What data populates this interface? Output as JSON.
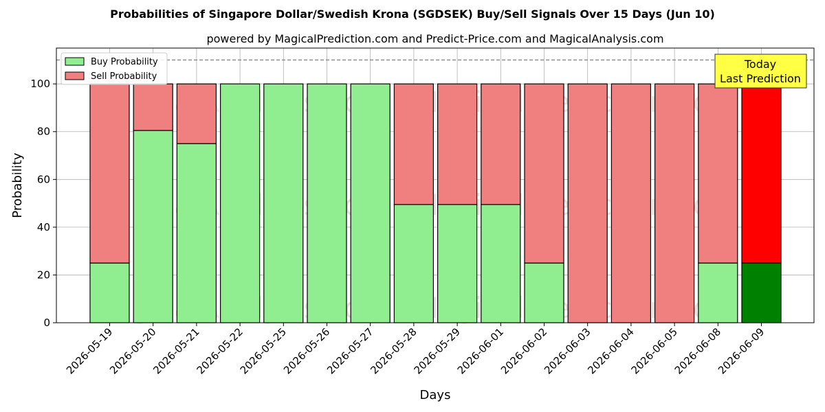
{
  "chart_data": {
    "type": "bar",
    "title": "Probabilities of Singapore Dollar/Swedish Krona (SGDSEK) Buy/Sell Signals Over 15 Days (Jun 10)",
    "subtitle": "powered by MagicalPrediction.com and Predict-Price.com and MagicalAnalysis.com",
    "xlabel": "Days",
    "ylabel": "Probability",
    "ylim": [
      0,
      115
    ],
    "yticks": [
      0,
      20,
      40,
      60,
      80,
      100
    ],
    "reference_line": 110,
    "grid": true,
    "stacked": true,
    "legend_position": "top-left",
    "categories": [
      "2026-05-19",
      "2026-05-20",
      "2026-05-21",
      "2026-05-22",
      "2026-05-25",
      "2026-05-26",
      "2026-05-27",
      "2026-05-28",
      "2026-05-29",
      "2026-06-01",
      "2026-06-02",
      "2026-06-03",
      "2026-06-04",
      "2026-06-05",
      "2026-06-08",
      "2026-06-09"
    ],
    "series": [
      {
        "name": "Buy Probability",
        "color": "#90ee90",
        "values": [
          25,
          80.5,
          75,
          100,
          100,
          100,
          100,
          49.5,
          49.5,
          49.5,
          25,
          0,
          0,
          0,
          25,
          25
        ]
      },
      {
        "name": "Sell Probability",
        "color": "#f08080",
        "values": [
          75,
          19.5,
          25,
          0,
          0,
          0,
          0,
          50.5,
          50.5,
          50.5,
          75,
          100,
          100,
          100,
          75,
          75
        ]
      }
    ],
    "highlight": {
      "index": 15,
      "buy_color": "#008000",
      "sell_color": "#ff0000"
    },
    "annotation": {
      "line1": "Today",
      "line2": "Last Prediction",
      "color": "#ffff44"
    },
    "watermarks": [
      "MagicalAnalysis.com",
      "MagicalPrediction.com"
    ]
  }
}
